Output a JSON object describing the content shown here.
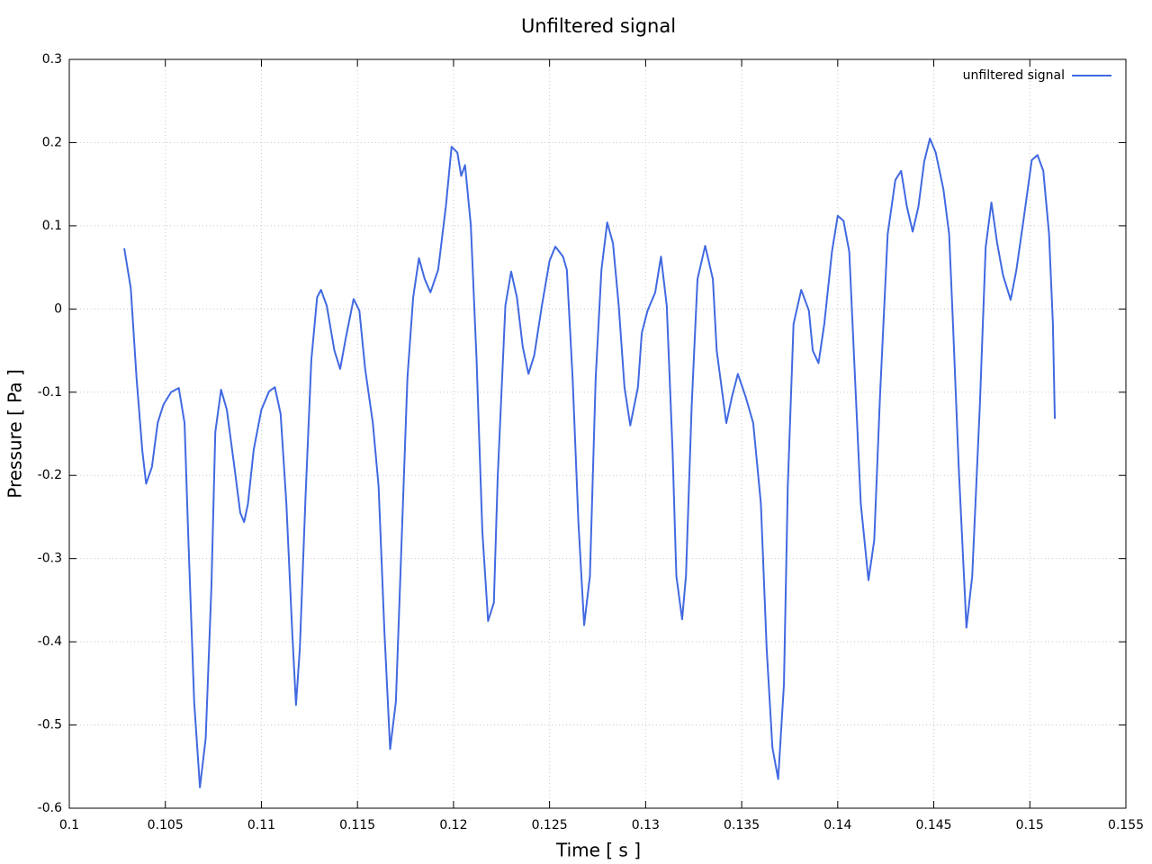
{
  "chart_data": {
    "type": "line",
    "title": "Unfiltered signal",
    "xlabel": "Time [ s ]",
    "ylabel": "Pressure [ Pa ]",
    "x": [
      0.10286,
      0.1032,
      0.1035,
      0.1038,
      0.104,
      0.1043,
      0.1046,
      0.1049,
      0.1053,
      0.1057,
      0.106,
      0.1062,
      0.1065,
      0.1068,
      0.1071,
      0.1074,
      0.1076,
      0.1079,
      0.1082,
      0.1086,
      0.1089,
      0.1091,
      0.1093,
      0.1096,
      0.11,
      0.1104,
      0.1107,
      0.111,
      0.1113,
      0.1116,
      0.1118,
      0.112,
      0.1123,
      0.1126,
      0.1129,
      0.1131,
      0.1134,
      0.1138,
      0.1141,
      0.1144,
      0.1148,
      0.1151,
      0.1154,
      0.1158,
      0.1161,
      0.1164,
      0.1167,
      0.117,
      0.1173,
      0.1176,
      0.1179,
      0.1182,
      0.1185,
      0.1188,
      0.1192,
      0.1196,
      0.1199,
      0.1202,
      0.1204,
      0.1206,
      0.1209,
      0.1212,
      0.1215,
      0.1218,
      0.1221,
      0.1223,
      0.1227,
      0.123,
      0.1233,
      0.1236,
      0.1239,
      0.1242,
      0.1246,
      0.125,
      0.1253,
      0.1257,
      0.1259,
      0.1262,
      0.1265,
      0.1268,
      0.1271,
      0.1274,
      0.1277,
      0.128,
      0.1283,
      0.1286,
      0.1289,
      0.1292,
      0.1296,
      0.1298,
      0.1301,
      0.1305,
      0.1308,
      0.1311,
      0.1314,
      0.1316,
      0.1319,
      0.1321,
      0.1324,
      0.1327,
      0.1331,
      0.1335,
      0.1337,
      0.1342,
      0.1345,
      0.1348,
      0.1352,
      0.1356,
      0.136,
      0.1363,
      0.1366,
      0.1369,
      0.1372,
      0.1374,
      0.1377,
      0.1381,
      0.1385,
      0.1387,
      0.139,
      0.1393,
      0.1397,
      0.14,
      0.1403,
      0.1406,
      0.1409,
      0.1412,
      0.1416,
      0.1419,
      0.1422,
      0.1426,
      0.143,
      0.1433,
      0.1436,
      0.1439,
      0.1442,
      0.1445,
      0.1448,
      0.1451,
      0.1455,
      0.1458,
      0.146,
      0.1463,
      0.1467,
      0.147,
      0.1474,
      0.1477,
      0.148,
      0.1483,
      0.1486,
      0.149,
      0.1493,
      0.1497,
      0.1501,
      0.1504,
      0.1507,
      0.151,
      0.1512,
      0.1513
    ],
    "series": [
      {
        "name": "unfiltered signal",
        "color": "#4169e1",
        "values": [
          0.073,
          0.025,
          -0.083,
          -0.17,
          -0.21,
          -0.19,
          -0.137,
          -0.115,
          -0.1,
          -0.095,
          -0.137,
          -0.278,
          -0.472,
          -0.575,
          -0.516,
          -0.332,
          -0.148,
          -0.097,
          -0.121,
          -0.191,
          -0.245,
          -0.256,
          -0.234,
          -0.169,
          -0.121,
          -0.099,
          -0.094,
          -0.126,
          -0.234,
          -0.386,
          -0.476,
          -0.408,
          -0.224,
          -0.061,
          0.014,
          0.023,
          0.004,
          -0.05,
          -0.072,
          -0.034,
          0.012,
          -0.002,
          -0.072,
          -0.137,
          -0.213,
          -0.386,
          -0.529,
          -0.472,
          -0.278,
          -0.083,
          0.014,
          0.061,
          0.036,
          0.02,
          0.047,
          0.123,
          0.195,
          0.188,
          0.16,
          0.173,
          0.101,
          -0.061,
          -0.267,
          -0.375,
          -0.353,
          -0.202,
          0.004,
          0.045,
          0.014,
          -0.045,
          -0.078,
          -0.056,
          0.004,
          0.058,
          0.075,
          0.063,
          0.047,
          -0.083,
          -0.256,
          -0.38,
          -0.321,
          -0.083,
          0.047,
          0.104,
          0.079,
          0.004,
          -0.094,
          -0.14,
          -0.094,
          -0.029,
          -0.002,
          0.02,
          0.063,
          0.004,
          -0.169,
          -0.321,
          -0.373,
          -0.321,
          -0.115,
          0.036,
          0.076,
          0.036,
          -0.05,
          -0.137,
          -0.105,
          -0.078,
          -0.105,
          -0.137,
          -0.234,
          -0.408,
          -0.527,
          -0.565,
          -0.451,
          -0.213,
          -0.018,
          0.023,
          -0.002,
          -0.05,
          -0.065,
          -0.018,
          0.069,
          0.112,
          0.106,
          0.069,
          -0.083,
          -0.234,
          -0.326,
          -0.278,
          -0.105,
          0.09,
          0.155,
          0.166,
          0.123,
          0.093,
          0.123,
          0.177,
          0.205,
          0.188,
          0.144,
          0.09,
          -0.018,
          -0.191,
          -0.383,
          -0.321,
          -0.115,
          0.074,
          0.128,
          0.079,
          0.041,
          0.011,
          0.047,
          0.112,
          0.179,
          0.185,
          0.166,
          0.09,
          -0.018,
          -0.132
        ]
      }
    ],
    "xlim": [
      0.1,
      0.155
    ],
    "xticks": [
      0.1,
      0.105,
      0.11,
      0.115,
      0.12,
      0.125,
      0.13,
      0.135,
      0.14,
      0.145,
      0.15,
      0.155
    ],
    "ylim": [
      -0.6,
      0.3
    ],
    "yticks": [
      -0.6,
      -0.5,
      -0.4,
      -0.3,
      -0.2,
      -0.1,
      0,
      0.1,
      0.2,
      0.3
    ],
    "grid": true,
    "legend": "top-right"
  }
}
